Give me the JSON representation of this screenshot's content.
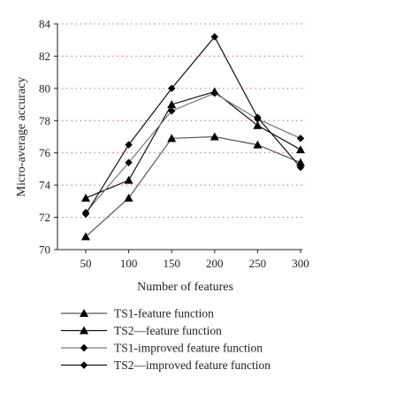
{
  "chart_data": {
    "type": "line",
    "x": [
      50,
      100,
      150,
      200,
      250,
      300
    ],
    "xlabel": "Number of features",
    "ylabel": "Micro-average accuracy",
    "ylim": [
      70,
      84
    ],
    "yticks": [
      70,
      72,
      74,
      76,
      78,
      80,
      82,
      84
    ],
    "xticks": [
      50,
      100,
      150,
      200,
      250,
      300
    ],
    "grid": "horizontal dotted",
    "legend_position": "bottom",
    "series": [
      {
        "name": "TS1-feature function",
        "marker": "triangle",
        "color": "#555555",
        "values": [
          70.8,
          73.2,
          76.9,
          77.0,
          76.5,
          75.4
        ]
      },
      {
        "name": "TS2—feature function",
        "marker": "triangle",
        "color": "#111111",
        "values": [
          73.2,
          74.3,
          79.0,
          79.8,
          77.7,
          76.2
        ]
      },
      {
        "name": "TS1-improved feature function",
        "marker": "diamond",
        "color": "#777777",
        "values": [
          72.3,
          75.4,
          78.6,
          79.7,
          78.1,
          76.9
        ]
      },
      {
        "name": "TS2—improved feature function",
        "marker": "diamond",
        "color": "#111111",
        "values": [
          72.2,
          76.5,
          80.0,
          83.2,
          78.2,
          75.1
        ]
      }
    ]
  }
}
